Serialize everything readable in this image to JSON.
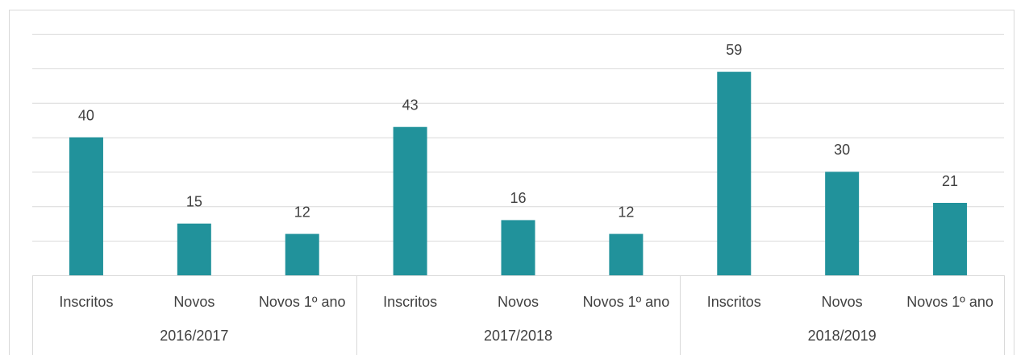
{
  "chart_data": {
    "type": "bar",
    "categories": [
      "Inscritos",
      "Novos",
      "Novos 1º ano",
      "Inscritos",
      "Novos",
      "Novos 1º ano",
      "Inscritos",
      "Novos",
      "Novos 1º ano"
    ],
    "groups": [
      "2016/2017",
      "2017/2018",
      "2018/2019"
    ],
    "values": [
      40,
      15,
      12,
      43,
      16,
      12,
      59,
      30,
      21
    ],
    "color": "#21929b",
    "ylim": [
      0,
      70
    ],
    "yticks": [
      0,
      10,
      20,
      30,
      40,
      50,
      60,
      70
    ],
    "grid": true
  }
}
